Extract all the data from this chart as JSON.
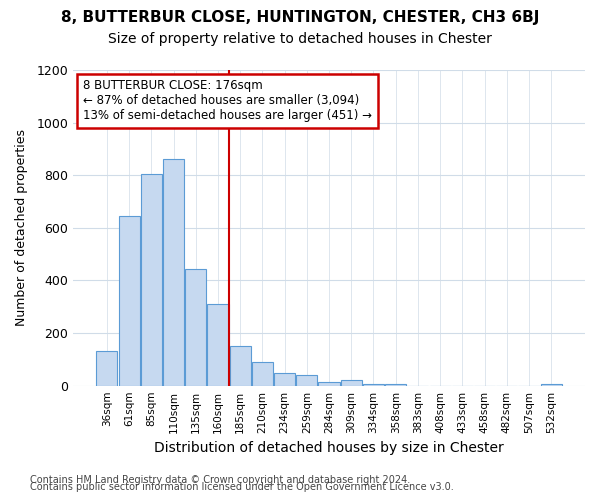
{
  "title1": "8, BUTTERBUR CLOSE, HUNTINGTON, CHESTER, CH3 6BJ",
  "title2": "Size of property relative to detached houses in Chester",
  "xlabel": "Distribution of detached houses by size in Chester",
  "ylabel": "Number of detached properties",
  "categories": [
    "36sqm",
    "61sqm",
    "85sqm",
    "110sqm",
    "135sqm",
    "160sqm",
    "185sqm",
    "210sqm",
    "234sqm",
    "259sqm",
    "284sqm",
    "309sqm",
    "334sqm",
    "358sqm",
    "383sqm",
    "408sqm",
    "433sqm",
    "458sqm",
    "482sqm",
    "507sqm",
    "532sqm"
  ],
  "values": [
    130,
    645,
    805,
    860,
    445,
    310,
    150,
    90,
    50,
    40,
    15,
    20,
    5,
    5,
    0,
    0,
    0,
    0,
    0,
    0,
    5
  ],
  "bar_color": "#c6d9f0",
  "bar_edge_color": "#5b9bd5",
  "vline_x_pos": 5.5,
  "vline_color": "#cc0000",
  "annotation_text": "8 BUTTERBUR CLOSE: 176sqm\n← 87% of detached houses are smaller (3,094)\n13% of semi-detached houses are larger (451) →",
  "annotation_box_color": "#ffffff",
  "annotation_box_edge_color": "#cc0000",
  "ylim": [
    0,
    1200
  ],
  "yticks": [
    0,
    200,
    400,
    600,
    800,
    1000,
    1200
  ],
  "footer1": "Contains HM Land Registry data © Crown copyright and database right 2024.",
  "footer2": "Contains public sector information licensed under the Open Government Licence v3.0.",
  "bg_color": "#ffffff",
  "grid_color": "#d0dce8",
  "title1_fontsize": 11,
  "title2_fontsize": 10
}
